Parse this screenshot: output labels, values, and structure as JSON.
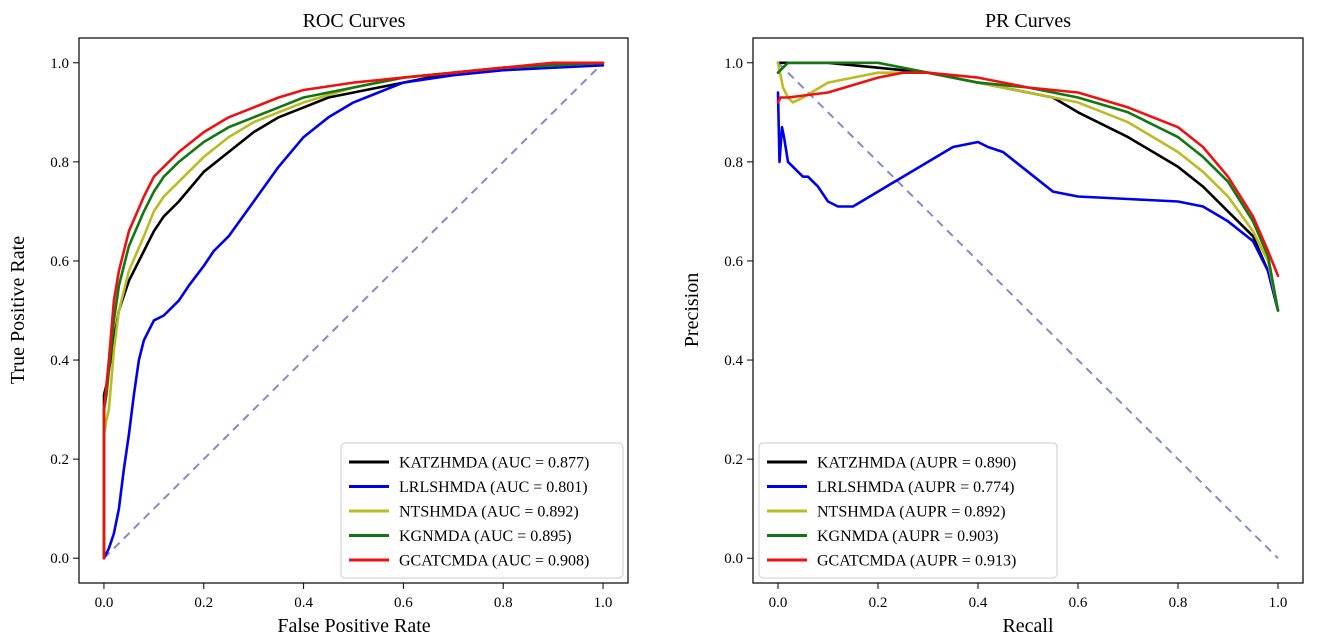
{
  "chart_data": [
    {
      "type": "line",
      "title": "ROC Curves",
      "xlabel": "False Positive Rate",
      "ylabel": "True Positive Rate",
      "xlim": [
        -0.05,
        1.05
      ],
      "ylim": [
        -0.05,
        1.05
      ],
      "xticks": [
        "0.0",
        "0.2",
        "0.4",
        "0.6",
        "0.8",
        "1.0"
      ],
      "yticks": [
        "0.0",
        "0.2",
        "0.4",
        "0.6",
        "0.8",
        "1.0"
      ],
      "legend_position": "bottom-right",
      "diagonal": {
        "x": [
          0,
          1
        ],
        "y": [
          0,
          1
        ],
        "color": "#8888cc",
        "style": "dashed"
      },
      "series": [
        {
          "name": "KATZHMDA",
          "label": "KATZHMDA (AUC = 0.877)",
          "color": "#000000",
          "x": [
            0,
            0,
            0.005,
            0.01,
            0.02,
            0.03,
            0.05,
            0.08,
            0.1,
            0.12,
            0.15,
            0.2,
            0.25,
            0.3,
            0.35,
            0.4,
            0.45,
            0.5,
            0.6,
            0.7,
            0.8,
            0.9,
            1.0
          ],
          "y": [
            0,
            0.33,
            0.35,
            0.38,
            0.44,
            0.5,
            0.56,
            0.62,
            0.66,
            0.69,
            0.72,
            0.78,
            0.82,
            0.86,
            0.89,
            0.91,
            0.93,
            0.94,
            0.96,
            0.98,
            0.99,
            0.995,
            1.0
          ]
        },
        {
          "name": "LRLSHMDA",
          "label": "LRLSHMDA (AUC = 0.801)",
          "color": "#0000ee",
          "x": [
            0,
            0.01,
            0.02,
            0.03,
            0.04,
            0.05,
            0.06,
            0.07,
            0.08,
            0.09,
            0.1,
            0.12,
            0.15,
            0.17,
            0.2,
            0.22,
            0.25,
            0.3,
            0.35,
            0.4,
            0.45,
            0.5,
            0.55,
            0.6,
            0.7,
            0.8,
            0.9,
            1.0
          ],
          "y": [
            0,
            0.02,
            0.05,
            0.1,
            0.18,
            0.25,
            0.33,
            0.4,
            0.44,
            0.46,
            0.48,
            0.49,
            0.52,
            0.55,
            0.59,
            0.62,
            0.65,
            0.72,
            0.79,
            0.85,
            0.89,
            0.92,
            0.94,
            0.96,
            0.975,
            0.985,
            0.99,
            0.995
          ]
        },
        {
          "name": "NTSHMDA",
          "label": "NTSHMDA (AUC = 0.892)",
          "color": "#bbbb22",
          "x": [
            0,
            0,
            0.005,
            0.01,
            0.02,
            0.03,
            0.05,
            0.08,
            0.1,
            0.12,
            0.15,
            0.2,
            0.25,
            0.3,
            0.35,
            0.4,
            0.5,
            0.6,
            0.7,
            0.8,
            0.9,
            1.0
          ],
          "y": [
            0,
            0.25,
            0.28,
            0.3,
            0.42,
            0.5,
            0.58,
            0.65,
            0.7,
            0.73,
            0.76,
            0.81,
            0.85,
            0.88,
            0.9,
            0.92,
            0.95,
            0.97,
            0.98,
            0.99,
            0.995,
            1.0
          ]
        },
        {
          "name": "KGNMDA",
          "label": "KGNMDA (AUC = 0.895)",
          "color": "#117711",
          "x": [
            0,
            0,
            0.005,
            0.01,
            0.02,
            0.03,
            0.05,
            0.08,
            0.1,
            0.12,
            0.15,
            0.2,
            0.25,
            0.3,
            0.35,
            0.4,
            0.5,
            0.6,
            0.7,
            0.8,
            0.9,
            1.0
          ],
          "y": [
            0,
            0.3,
            0.33,
            0.38,
            0.48,
            0.55,
            0.63,
            0.7,
            0.74,
            0.77,
            0.8,
            0.84,
            0.87,
            0.89,
            0.91,
            0.93,
            0.95,
            0.97,
            0.98,
            0.99,
            0.995,
            1.0
          ]
        },
        {
          "name": "GCATCMDA",
          "label": "GCATCMDA (AUC = 0.908)",
          "color": "#ee1111",
          "x": [
            0,
            0,
            0.005,
            0.01,
            0.02,
            0.03,
            0.05,
            0.08,
            0.1,
            0.12,
            0.15,
            0.2,
            0.25,
            0.3,
            0.35,
            0.4,
            0.5,
            0.6,
            0.7,
            0.8,
            0.9,
            1.0
          ],
          "y": [
            0,
            0.3,
            0.35,
            0.4,
            0.52,
            0.58,
            0.66,
            0.73,
            0.77,
            0.79,
            0.82,
            0.86,
            0.89,
            0.91,
            0.93,
            0.945,
            0.96,
            0.97,
            0.98,
            0.99,
            1.0,
            1.0
          ]
        }
      ]
    },
    {
      "type": "line",
      "title": "PR Curves",
      "xlabel": "Recall",
      "ylabel": "Precision",
      "xlim": [
        -0.05,
        1.05
      ],
      "ylim": [
        -0.05,
        1.05
      ],
      "xticks": [
        "0.0",
        "0.2",
        "0.4",
        "0.6",
        "0.8",
        "1.0"
      ],
      "yticks": [
        "0.0",
        "0.2",
        "0.4",
        "0.6",
        "0.8",
        "1.0"
      ],
      "legend_position": "bottom-left",
      "diagonal": {
        "x": [
          0,
          1
        ],
        "y": [
          1,
          0
        ],
        "color": "#8888cc",
        "style": "dashed"
      },
      "series": [
        {
          "name": "KATZHMDA",
          "label": "KATZHMDA (AUPR = 0.890)",
          "color": "#000000",
          "x": [
            0,
            0.02,
            0.1,
            0.2,
            0.3,
            0.4,
            0.5,
            0.55,
            0.6,
            0.7,
            0.8,
            0.85,
            0.9,
            0.95,
            0.98,
            1.0
          ],
          "y": [
            1.0,
            1.0,
            1.0,
            0.99,
            0.98,
            0.96,
            0.94,
            0.93,
            0.9,
            0.85,
            0.79,
            0.75,
            0.7,
            0.65,
            0.58,
            0.5
          ]
        },
        {
          "name": "LRLSHMDA",
          "label": "LRLSHMDA (AUPR = 0.774)",
          "color": "#0000ee",
          "x": [
            0,
            0.003,
            0.008,
            0.012,
            0.02,
            0.03,
            0.04,
            0.05,
            0.06,
            0.07,
            0.08,
            0.1,
            0.12,
            0.15,
            0.2,
            0.25,
            0.3,
            0.35,
            0.4,
            0.42,
            0.45,
            0.5,
            0.55,
            0.6,
            0.7,
            0.8,
            0.85,
            0.9,
            0.95,
            0.98,
            1.0
          ],
          "y": [
            0.94,
            0.8,
            0.87,
            0.85,
            0.8,
            0.79,
            0.78,
            0.77,
            0.77,
            0.76,
            0.75,
            0.72,
            0.71,
            0.71,
            0.74,
            0.77,
            0.8,
            0.83,
            0.84,
            0.83,
            0.82,
            0.78,
            0.74,
            0.73,
            0.725,
            0.72,
            0.71,
            0.68,
            0.64,
            0.58,
            0.5
          ]
        },
        {
          "name": "NTSHMDA",
          "label": "NTSHMDA (AUPR = 0.892)",
          "color": "#bbbb22",
          "x": [
            0,
            0.01,
            0.02,
            0.03,
            0.05,
            0.1,
            0.15,
            0.2,
            0.3,
            0.4,
            0.5,
            0.6,
            0.7,
            0.8,
            0.85,
            0.9,
            0.95,
            0.98,
            1.0
          ],
          "y": [
            1.0,
            0.95,
            0.93,
            0.92,
            0.93,
            0.96,
            0.97,
            0.98,
            0.98,
            0.96,
            0.94,
            0.92,
            0.88,
            0.82,
            0.78,
            0.73,
            0.66,
            0.6,
            0.5
          ]
        },
        {
          "name": "KGNMDA",
          "label": "KGNMDA (AUPR = 0.903)",
          "color": "#117711",
          "x": [
            0,
            0.01,
            0.02,
            0.05,
            0.1,
            0.2,
            0.3,
            0.4,
            0.5,
            0.6,
            0.7,
            0.8,
            0.85,
            0.9,
            0.95,
            0.98,
            1.0
          ],
          "y": [
            0.98,
            0.99,
            1.0,
            1.0,
            1.0,
            1.0,
            0.98,
            0.96,
            0.95,
            0.93,
            0.9,
            0.85,
            0.81,
            0.76,
            0.68,
            0.61,
            0.5
          ]
        },
        {
          "name": "GCATCMDA",
          "label": "GCATCMDA (AUPR = 0.913)",
          "color": "#ee1111",
          "x": [
            0,
            0.005,
            0.02,
            0.1,
            0.2,
            0.25,
            0.3,
            0.4,
            0.5,
            0.6,
            0.7,
            0.8,
            0.85,
            0.9,
            0.95,
            0.98,
            1.0
          ],
          "y": [
            0.92,
            0.93,
            0.93,
            0.94,
            0.97,
            0.98,
            0.98,
            0.97,
            0.95,
            0.94,
            0.91,
            0.87,
            0.83,
            0.77,
            0.69,
            0.62,
            0.57
          ]
        }
      ]
    }
  ]
}
